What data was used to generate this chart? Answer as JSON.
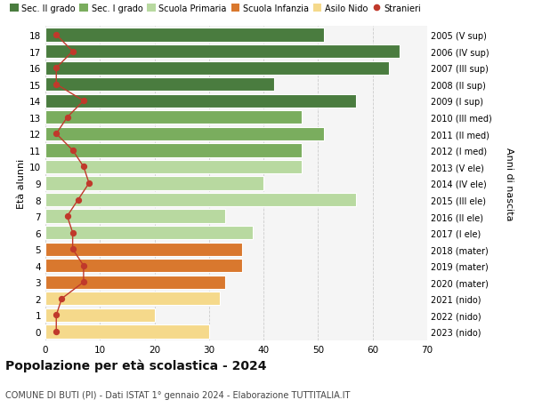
{
  "ages": [
    18,
    17,
    16,
    15,
    14,
    13,
    12,
    11,
    10,
    9,
    8,
    7,
    6,
    5,
    4,
    3,
    2,
    1,
    0
  ],
  "right_labels": [
    "2005 (V sup)",
    "2006 (IV sup)",
    "2007 (III sup)",
    "2008 (II sup)",
    "2009 (I sup)",
    "2010 (III med)",
    "2011 (II med)",
    "2012 (I med)",
    "2013 (V ele)",
    "2014 (IV ele)",
    "2015 (III ele)",
    "2016 (II ele)",
    "2017 (I ele)",
    "2018 (mater)",
    "2019 (mater)",
    "2020 (mater)",
    "2021 (nido)",
    "2022 (nido)",
    "2023 (nido)"
  ],
  "bar_values": [
    51,
    65,
    63,
    42,
    57,
    47,
    51,
    47,
    47,
    40,
    57,
    33,
    38,
    36,
    36,
    33,
    32,
    20,
    30
  ],
  "stranieri": [
    2,
    5,
    2,
    2,
    7,
    4,
    2,
    5,
    7,
    8,
    6,
    4,
    5,
    5,
    7,
    7,
    3,
    2,
    2
  ],
  "bar_colors": [
    "#4a7c3f",
    "#4a7c3f",
    "#4a7c3f",
    "#4a7c3f",
    "#4a7c3f",
    "#7aad5e",
    "#7aad5e",
    "#7aad5e",
    "#b8d9a0",
    "#b8d9a0",
    "#b8d9a0",
    "#b8d9a0",
    "#b8d9a0",
    "#d9782e",
    "#d9782e",
    "#d9782e",
    "#f5d98b",
    "#f5d98b",
    "#f5d98b"
  ],
  "legend_colors": [
    "#4a7c3f",
    "#7aad5e",
    "#b8d9a0",
    "#d9782e",
    "#f5d98b"
  ],
  "legend_labels": [
    "Sec. II grado",
    "Sec. I grado",
    "Scuola Primaria",
    "Scuola Infanzia",
    "Asilo Nido"
  ],
  "stranieri_color": "#c0392b",
  "stranieri_label": "Stranieri",
  "title": "Popolazione per età scolastica - 2024",
  "subtitle": "COMUNE DI BUTI (PI) - Dati ISTAT 1° gennaio 2024 - Elaborazione TUTTITALIA.IT",
  "right_axis_label": "Anni di nascita",
  "ylabel": "Età alunni",
  "xlim": [
    0,
    70
  ],
  "xticks": [
    0,
    10,
    20,
    30,
    40,
    50,
    60,
    70
  ],
  "background_color": "#ffffff",
  "plot_bg_color": "#f5f5f5",
  "grid_color": "#cccccc",
  "bar_height": 0.82,
  "bar_edge_color": "#ffffff",
  "bar_linewidth": 0.8
}
